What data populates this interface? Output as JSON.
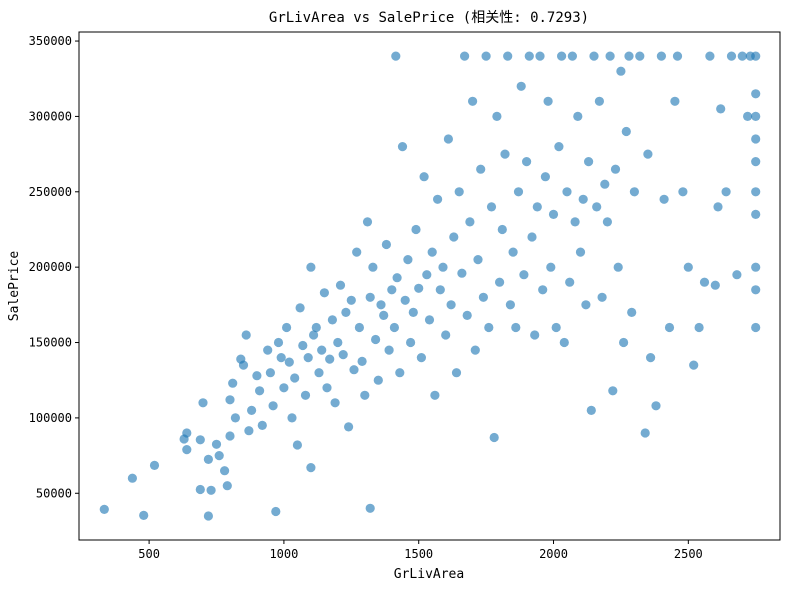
{
  "chart_data": {
    "type": "scatter",
    "title": "GrLivArea vs SalePrice (相关性: 0.7293)",
    "xlabel": "GrLivArea",
    "ylabel": "SalePrice",
    "xlim": [
      240,
      2840
    ],
    "ylim": [
      19000,
      356000
    ],
    "xticks": [
      500,
      1000,
      1500,
      2000,
      2500
    ],
    "yticks": [
      50000,
      100000,
      150000,
      200000,
      250000,
      300000,
      350000
    ],
    "xtick_labels": [
      "500",
      "1000",
      "1500",
      "2000",
      "2500"
    ],
    "ytick_labels": [
      "50000",
      "100000",
      "150000",
      "200000",
      "250000",
      "300000",
      "350000"
    ],
    "grid": false,
    "legend": "none",
    "colors": {
      "points": "#1f77b4",
      "axes": "#000000",
      "background": "#ffffff"
    },
    "series": [
      {
        "points": [
          [
            334,
            39300
          ],
          [
            480,
            35300
          ],
          [
            438,
            60000
          ],
          [
            520,
            68500
          ],
          [
            720,
            34900
          ],
          [
            690,
            52500
          ],
          [
            730,
            52000
          ],
          [
            630,
            86000
          ],
          [
            640,
            79000
          ],
          [
            640,
            90000
          ],
          [
            690,
            85500
          ],
          [
            700,
            110000
          ],
          [
            720,
            72500
          ],
          [
            750,
            82500
          ],
          [
            760,
            75000
          ],
          [
            780,
            65000
          ],
          [
            790,
            55000
          ],
          [
            800,
            88000
          ],
          [
            800,
            112000
          ],
          [
            810,
            123000
          ],
          [
            820,
            100000
          ],
          [
            840,
            139000
          ],
          [
            850,
            135000
          ],
          [
            860,
            155000
          ],
          [
            870,
            91500
          ],
          [
            880,
            105000
          ],
          [
            900,
            128000
          ],
          [
            910,
            118000
          ],
          [
            920,
            95000
          ],
          [
            940,
            145000
          ],
          [
            950,
            130000
          ],
          [
            960,
            108000
          ],
          [
            970,
            37900
          ],
          [
            980,
            150000
          ],
          [
            990,
            140000
          ],
          [
            1000,
            120000
          ],
          [
            1010,
            160000
          ],
          [
            1020,
            137000
          ],
          [
            1030,
            100000
          ],
          [
            1040,
            126500
          ],
          [
            1050,
            82000
          ],
          [
            1060,
            173000
          ],
          [
            1070,
            148000
          ],
          [
            1080,
            115000
          ],
          [
            1090,
            140000
          ],
          [
            1100,
            200000
          ],
          [
            1100,
            67000
          ],
          [
            1110,
            155000
          ],
          [
            1120,
            160000
          ],
          [
            1130,
            130000
          ],
          [
            1140,
            145000
          ],
          [
            1150,
            183000
          ],
          [
            1160,
            120000
          ],
          [
            1170,
            139000
          ],
          [
            1180,
            165000
          ],
          [
            1190,
            110000
          ],
          [
            1200,
            150000
          ],
          [
            1210,
            188000
          ],
          [
            1220,
            142000
          ],
          [
            1230,
            170000
          ],
          [
            1240,
            94000
          ],
          [
            1250,
            178000
          ],
          [
            1260,
            132000
          ],
          [
            1270,
            210000
          ],
          [
            1280,
            160000
          ],
          [
            1290,
            137500
          ],
          [
            1300,
            115000
          ],
          [
            1310,
            230000
          ],
          [
            1320,
            40000
          ],
          [
            1320,
            180000
          ],
          [
            1330,
            200000
          ],
          [
            1340,
            152000
          ],
          [
            1350,
            125000
          ],
          [
            1360,
            175000
          ],
          [
            1370,
            168000
          ],
          [
            1380,
            215000
          ],
          [
            1390,
            145000
          ],
          [
            1400,
            185000
          ],
          [
            1410,
            160000
          ],
          [
            1415,
            340000
          ],
          [
            1420,
            193000
          ],
          [
            1430,
            130000
          ],
          [
            1440,
            280000
          ],
          [
            1450,
            178000
          ],
          [
            1460,
            205000
          ],
          [
            1470,
            150000
          ],
          [
            1480,
            170000
          ],
          [
            1490,
            225000
          ],
          [
            1500,
            186000
          ],
          [
            1510,
            140000
          ],
          [
            1520,
            260000
          ],
          [
            1530,
            195000
          ],
          [
            1540,
            165000
          ],
          [
            1550,
            210000
          ],
          [
            1560,
            115000
          ],
          [
            1570,
            245000
          ],
          [
            1580,
            185000
          ],
          [
            1590,
            200000
          ],
          [
            1600,
            155000
          ],
          [
            1610,
            285000
          ],
          [
            1620,
            175000
          ],
          [
            1630,
            220000
          ],
          [
            1640,
            130000
          ],
          [
            1650,
            250000
          ],
          [
            1660,
            196000
          ],
          [
            1670,
            340000
          ],
          [
            1680,
            168000
          ],
          [
            1690,
            230000
          ],
          [
            1700,
            310000
          ],
          [
            1710,
            145000
          ],
          [
            1720,
            205000
          ],
          [
            1730,
            265000
          ],
          [
            1740,
            180000
          ],
          [
            1750,
            340000
          ],
          [
            1760,
            160000
          ],
          [
            1770,
            240000
          ],
          [
            1780,
            87000
          ],
          [
            1790,
            300000
          ],
          [
            1800,
            190000
          ],
          [
            1810,
            225000
          ],
          [
            1820,
            275000
          ],
          [
            1830,
            340000
          ],
          [
            1840,
            175000
          ],
          [
            1850,
            210000
          ],
          [
            1860,
            160000
          ],
          [
            1870,
            250000
          ],
          [
            1880,
            320000
          ],
          [
            1890,
            195000
          ],
          [
            1900,
            270000
          ],
          [
            1910,
            340000
          ],
          [
            1920,
            220000
          ],
          [
            1930,
            155000
          ],
          [
            1940,
            240000
          ],
          [
            1950,
            340000
          ],
          [
            1960,
            185000
          ],
          [
            1970,
            260000
          ],
          [
            1980,
            310000
          ],
          [
            1990,
            200000
          ],
          [
            2000,
            235000
          ],
          [
            2010,
            160000
          ],
          [
            2020,
            280000
          ],
          [
            2030,
            340000
          ],
          [
            2040,
            150000
          ],
          [
            2050,
            250000
          ],
          [
            2060,
            190000
          ],
          [
            2070,
            340000
          ],
          [
            2080,
            230000
          ],
          [
            2090,
            300000
          ],
          [
            2100,
            210000
          ],
          [
            2110,
            245000
          ],
          [
            2120,
            175000
          ],
          [
            2130,
            270000
          ],
          [
            2140,
            105000
          ],
          [
            2150,
            340000
          ],
          [
            2160,
            240000
          ],
          [
            2170,
            310000
          ],
          [
            2180,
            180000
          ],
          [
            2190,
            255000
          ],
          [
            2200,
            230000
          ],
          [
            2210,
            340000
          ],
          [
            2220,
            118000
          ],
          [
            2230,
            265000
          ],
          [
            2240,
            200000
          ],
          [
            2250,
            330000
          ],
          [
            2260,
            150000
          ],
          [
            2270,
            290000
          ],
          [
            2280,
            340000
          ],
          [
            2290,
            170000
          ],
          [
            2300,
            250000
          ],
          [
            2320,
            340000
          ],
          [
            2340,
            90000
          ],
          [
            2350,
            275000
          ],
          [
            2360,
            140000
          ],
          [
            2380,
            108000
          ],
          [
            2400,
            340000
          ],
          [
            2410,
            245000
          ],
          [
            2430,
            160000
          ],
          [
            2450,
            310000
          ],
          [
            2460,
            340000
          ],
          [
            2480,
            250000
          ],
          [
            2500,
            200000
          ],
          [
            2520,
            135000
          ],
          [
            2540,
            160000
          ],
          [
            2560,
            190000
          ],
          [
            2580,
            340000
          ],
          [
            2600,
            188000
          ],
          [
            2610,
            240000
          ],
          [
            2620,
            305000
          ],
          [
            2640,
            250000
          ],
          [
            2660,
            340000
          ],
          [
            2680,
            195000
          ],
          [
            2700,
            340000
          ],
          [
            2720,
            300000
          ],
          [
            2730,
            340000
          ],
          [
            2750,
            160000
          ],
          [
            2750,
            185000
          ],
          [
            2750,
            200000
          ],
          [
            2750,
            235000
          ],
          [
            2750,
            250000
          ],
          [
            2750,
            270000
          ],
          [
            2750,
            285000
          ],
          [
            2750,
            300000
          ],
          [
            2750,
            315000
          ],
          [
            2750,
            340000
          ]
        ]
      }
    ]
  }
}
